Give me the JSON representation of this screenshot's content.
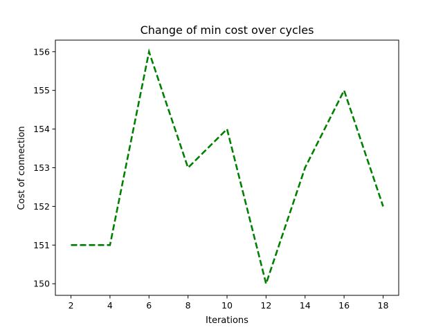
{
  "chart_data": {
    "type": "line",
    "title": "Change of min cost over cycles",
    "xlabel": "Iterations",
    "ylabel": "Cost of connection",
    "x": [
      2,
      4,
      6,
      8,
      10,
      12,
      14,
      16,
      18
    ],
    "series": [
      {
        "values": [
          151,
          151,
          156,
          153,
          154,
          150,
          153,
          155,
          152
        ],
        "color": "#008000",
        "line_style": "dashed"
      }
    ],
    "xticks": [
      "2",
      "4",
      "6",
      "8",
      "10",
      "12",
      "14",
      "16",
      "18"
    ],
    "yticks": [
      "150",
      "151",
      "152",
      "153",
      "154",
      "155",
      "156"
    ],
    "xlim": [
      1.2,
      18.8
    ],
    "ylim": [
      149.7,
      156.3
    ],
    "grid": false,
    "legend": "none"
  }
}
